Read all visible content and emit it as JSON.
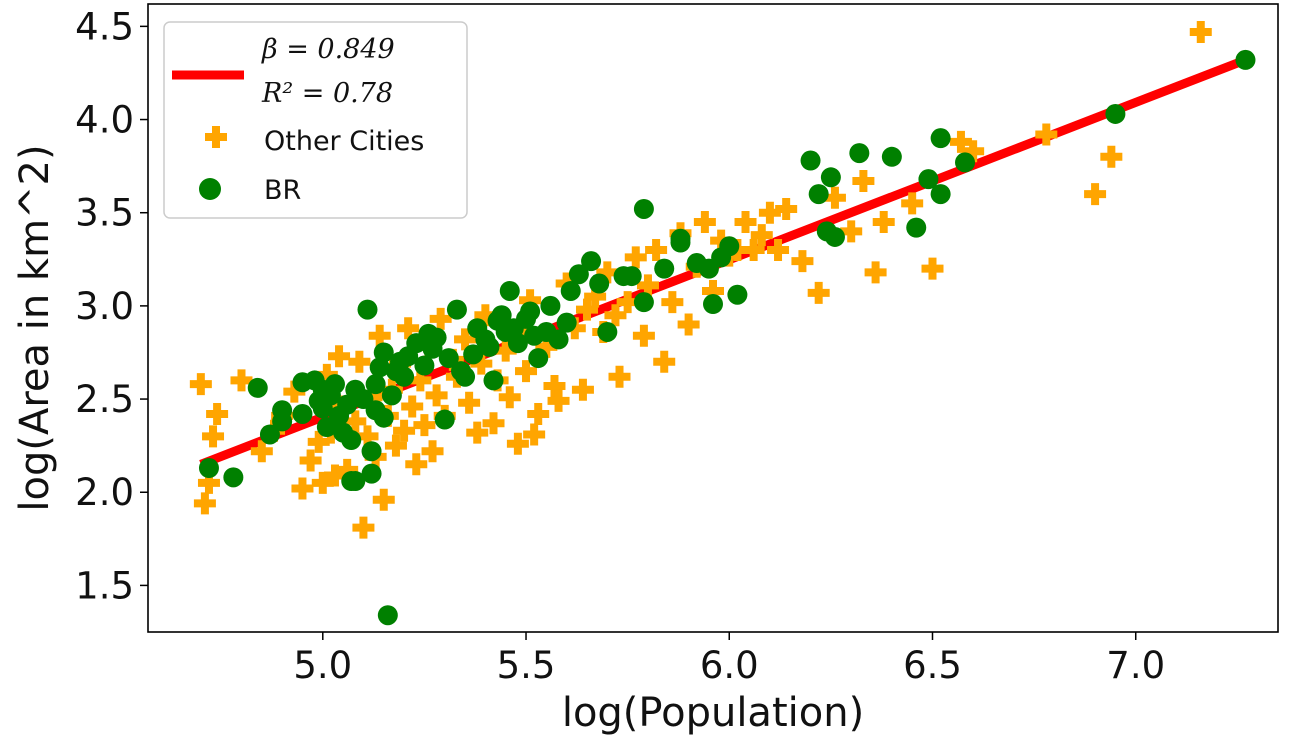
{
  "chart_data": {
    "type": "scatter",
    "xlabel": "log(Population)",
    "ylabel": "log(Area in km^2)",
    "xlim": [
      4.57,
      7.35
    ],
    "ylim": [
      1.25,
      4.62
    ],
    "xticks": [
      "5.0",
      "5.5",
      "6.0",
      "6.5",
      "7.0"
    ],
    "yticks": [
      "1.5",
      "2.0",
      "2.5",
      "3.0",
      "3.5",
      "4.0",
      "4.5"
    ],
    "grid": false,
    "legend_position": "top-left",
    "fit_line": {
      "legend_line1": "β = 0.849",
      "legend_line2": "R² = 0.78",
      "color": "#ff0000",
      "x": [
        4.7,
        7.27
      ],
      "y": [
        2.15,
        4.32
      ]
    },
    "series": [
      {
        "name": "Other Cities",
        "marker": "plus",
        "color": "#ffa500",
        "points": [
          [
            4.7,
            2.58
          ],
          [
            4.71,
            1.94
          ],
          [
            4.73,
            2.3
          ],
          [
            4.74,
            2.42
          ],
          [
            4.72,
            2.05
          ],
          [
            4.8,
            2.6
          ],
          [
            4.85,
            2.22
          ],
          [
            4.88,
            2.33
          ],
          [
            4.9,
            2.41
          ],
          [
            4.93,
            2.54
          ],
          [
            4.95,
            2.02
          ],
          [
            4.97,
            2.17
          ],
          [
            4.99,
            2.27
          ],
          [
            5.0,
            2.05
          ],
          [
            5.01,
            2.63
          ],
          [
            5.02,
            2.32
          ],
          [
            5.03,
            2.09
          ],
          [
            5.04,
            2.73
          ],
          [
            5.05,
            2.46
          ],
          [
            5.06,
            2.12
          ],
          [
            5.08,
            2.38
          ],
          [
            5.09,
            2.7
          ],
          [
            5.1,
            1.81
          ],
          [
            5.11,
            2.3
          ],
          [
            5.12,
            2.51
          ],
          [
            5.13,
            2.19
          ],
          [
            5.14,
            2.84
          ],
          [
            5.15,
            1.96
          ],
          [
            5.16,
            2.41
          ],
          [
            5.17,
            2.55
          ],
          [
            5.18,
            2.25
          ],
          [
            5.19,
            2.69
          ],
          [
            5.2,
            2.33
          ],
          [
            5.21,
            2.88
          ],
          [
            5.22,
            2.46
          ],
          [
            5.23,
            2.15
          ],
          [
            5.24,
            2.6
          ],
          [
            5.25,
            2.36
          ],
          [
            5.26,
            2.78
          ],
          [
            5.27,
            2.22
          ],
          [
            5.28,
            2.52
          ],
          [
            5.29,
            2.93
          ],
          [
            5.3,
            2.41
          ],
          [
            5.32,
            2.71
          ],
          [
            5.33,
            2.62
          ],
          [
            5.35,
            2.82
          ],
          [
            5.36,
            2.48
          ],
          [
            5.38,
            2.32
          ],
          [
            5.39,
            2.69
          ],
          [
            5.4,
            2.95
          ],
          [
            5.42,
            2.37
          ],
          [
            5.43,
            2.6
          ],
          [
            5.45,
            2.76
          ],
          [
            5.46,
            2.51
          ],
          [
            5.48,
            2.26
          ],
          [
            5.49,
            2.88
          ],
          [
            5.5,
            2.65
          ],
          [
            5.51,
            3.03
          ],
          [
            5.52,
            2.31
          ],
          [
            5.53,
            2.42
          ],
          [
            5.55,
            2.78
          ],
          [
            5.57,
            2.57
          ],
          [
            5.58,
            2.49
          ],
          [
            5.6,
            3.12
          ],
          [
            5.62,
            2.88
          ],
          [
            5.64,
            2.55
          ],
          [
            5.65,
            2.98
          ],
          [
            5.67,
            3.05
          ],
          [
            5.69,
            2.86
          ],
          [
            5.7,
            3.18
          ],
          [
            5.72,
            2.95
          ],
          [
            5.73,
            2.62
          ],
          [
            5.75,
            3.02
          ],
          [
            5.77,
            3.26
          ],
          [
            5.79,
            2.84
          ],
          [
            5.8,
            3.11
          ],
          [
            5.82,
            3.3
          ],
          [
            5.84,
            2.7
          ],
          [
            5.86,
            3.02
          ],
          [
            5.88,
            3.39
          ],
          [
            5.9,
            2.9
          ],
          [
            5.92,
            3.21
          ],
          [
            5.94,
            3.45
          ],
          [
            5.96,
            3.08
          ],
          [
            5.98,
            3.35
          ],
          [
            6.0,
            3.27
          ],
          [
            6.02,
            3.3
          ],
          [
            6.04,
            3.45
          ],
          [
            6.06,
            3.3
          ],
          [
            6.08,
            3.38
          ],
          [
            6.1,
            3.5
          ],
          [
            6.12,
            3.3
          ],
          [
            6.14,
            3.52
          ],
          [
            6.18,
            3.24
          ],
          [
            6.22,
            3.07
          ],
          [
            6.26,
            3.58
          ],
          [
            6.3,
            3.4
          ],
          [
            6.33,
            3.67
          ],
          [
            6.36,
            3.18
          ],
          [
            6.38,
            3.45
          ],
          [
            6.45,
            3.55
          ],
          [
            6.5,
            3.2
          ],
          [
            6.57,
            3.88
          ],
          [
            6.6,
            3.83
          ],
          [
            6.78,
            3.92
          ],
          [
            6.9,
            3.6
          ],
          [
            6.94,
            3.8
          ],
          [
            7.16,
            4.47
          ]
        ]
      },
      {
        "name": "BR",
        "marker": "circle",
        "color": "#008000",
        "points": [
          [
            4.72,
            2.13
          ],
          [
            4.78,
            2.08
          ],
          [
            4.84,
            2.56
          ],
          [
            4.87,
            2.31
          ],
          [
            4.9,
            2.38
          ],
          [
            4.9,
            2.44
          ],
          [
            4.95,
            2.42
          ],
          [
            4.95,
            2.59
          ],
          [
            4.98,
            2.6
          ],
          [
            4.99,
            2.49
          ],
          [
            5.0,
            2.45
          ],
          [
            5.0,
            2.55
          ],
          [
            5.01,
            2.35
          ],
          [
            5.02,
            2.52
          ],
          [
            5.03,
            2.58
          ],
          [
            5.04,
            2.41
          ],
          [
            5.05,
            2.32
          ],
          [
            5.06,
            2.47
          ],
          [
            5.07,
            2.28
          ],
          [
            5.08,
            2.55
          ],
          [
            5.07,
            2.06
          ],
          [
            5.08,
            2.06
          ],
          [
            5.1,
            2.5
          ],
          [
            5.11,
            2.98
          ],
          [
            5.12,
            2.22
          ],
          [
            5.12,
            2.1
          ],
          [
            5.13,
            2.44
          ],
          [
            5.13,
            2.58
          ],
          [
            5.14,
            2.67
          ],
          [
            5.15,
            2.75
          ],
          [
            5.15,
            2.4
          ],
          [
            5.16,
            1.34
          ],
          [
            5.17,
            2.52
          ],
          [
            5.18,
            2.65
          ],
          [
            5.19,
            2.7
          ],
          [
            5.2,
            2.62
          ],
          [
            5.21,
            2.73
          ],
          [
            5.23,
            2.8
          ],
          [
            5.25,
            2.68
          ],
          [
            5.26,
            2.85
          ],
          [
            5.27,
            2.77
          ],
          [
            5.28,
            2.83
          ],
          [
            5.3,
            2.39
          ],
          [
            5.31,
            2.72
          ],
          [
            5.33,
            2.98
          ],
          [
            5.34,
            2.65
          ],
          [
            5.35,
            2.62
          ],
          [
            5.37,
            2.74
          ],
          [
            5.38,
            2.88
          ],
          [
            5.4,
            2.82
          ],
          [
            5.41,
            2.78
          ],
          [
            5.42,
            2.6
          ],
          [
            5.43,
            2.92
          ],
          [
            5.44,
            2.95
          ],
          [
            5.45,
            2.86
          ],
          [
            5.46,
            3.08
          ],
          [
            5.47,
            2.88
          ],
          [
            5.48,
            2.8
          ],
          [
            5.5,
            2.93
          ],
          [
            5.51,
            2.97
          ],
          [
            5.52,
            2.84
          ],
          [
            5.53,
            2.72
          ],
          [
            5.55,
            2.86
          ],
          [
            5.56,
            3.0
          ],
          [
            5.58,
            2.82
          ],
          [
            5.6,
            2.91
          ],
          [
            5.61,
            3.08
          ],
          [
            5.63,
            3.17
          ],
          [
            5.66,
            3.24
          ],
          [
            5.68,
            3.12
          ],
          [
            5.7,
            2.86
          ],
          [
            5.74,
            3.16
          ],
          [
            5.76,
            3.16
          ],
          [
            5.79,
            3.02
          ],
          [
            5.79,
            3.52
          ],
          [
            5.84,
            3.2
          ],
          [
            5.88,
            3.36
          ],
          [
            5.88,
            3.34
          ],
          [
            5.92,
            3.23
          ],
          [
            5.95,
            3.2
          ],
          [
            5.96,
            3.01
          ],
          [
            5.98,
            3.26
          ],
          [
            6.0,
            3.32
          ],
          [
            6.02,
            3.06
          ],
          [
            6.2,
            3.78
          ],
          [
            6.22,
            3.6
          ],
          [
            6.24,
            3.4
          ],
          [
            6.25,
            3.69
          ],
          [
            6.26,
            3.37
          ],
          [
            6.32,
            3.82
          ],
          [
            6.4,
            3.8
          ],
          [
            6.46,
            3.42
          ],
          [
            6.49,
            3.68
          ],
          [
            6.52,
            3.6
          ],
          [
            6.52,
            3.9
          ],
          [
            6.58,
            3.77
          ],
          [
            6.95,
            4.03
          ],
          [
            7.27,
            4.32
          ]
        ]
      }
    ]
  }
}
